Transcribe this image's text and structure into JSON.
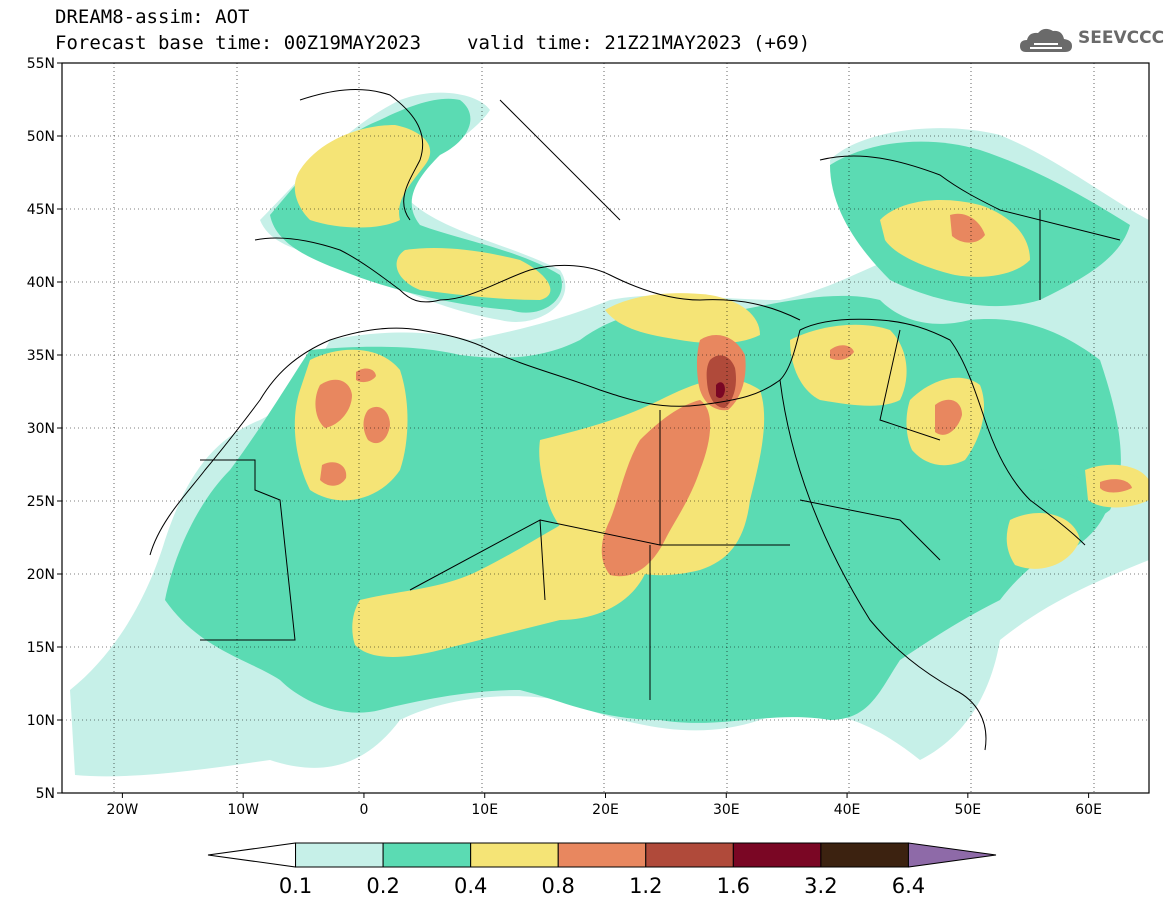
{
  "header": {
    "line1": "DREAM8-assim: AOT",
    "base_time": "Forecast base time: 00Z19MAY2023",
    "valid_time": "valid time: 21Z21MAY2023 (+69)",
    "logo_text": "SEEVCCC",
    "logo_icon": "cloud-icon"
  },
  "map": {
    "lon_range": [
      -25,
      65
    ],
    "lat_range": [
      5,
      55
    ],
    "lon_ticks": [
      {
        "value": -20,
        "label": "20W"
      },
      {
        "value": -10,
        "label": "10W"
      },
      {
        "value": 0,
        "label": "0"
      },
      {
        "value": 10,
        "label": "10E"
      },
      {
        "value": 20,
        "label": "20E"
      },
      {
        "value": 30,
        "label": "30E"
      },
      {
        "value": 40,
        "label": "40E"
      },
      {
        "value": 50,
        "label": "50E"
      },
      {
        "value": 60,
        "label": "60E"
      }
    ],
    "lat_ticks": [
      {
        "value": 55,
        "label": "55N"
      },
      {
        "value": 50,
        "label": "50N"
      },
      {
        "value": 45,
        "label": "45N"
      },
      {
        "value": 40,
        "label": "40N"
      },
      {
        "value": 35,
        "label": "35N"
      },
      {
        "value": 30,
        "label": "30N"
      },
      {
        "value": 25,
        "label": "25N"
      },
      {
        "value": 20,
        "label": "20N"
      },
      {
        "value": 15,
        "label": "15N"
      },
      {
        "value": 10,
        "label": "10N"
      },
      {
        "value": 5,
        "label": "5N"
      }
    ],
    "grid": "dotted"
  },
  "colorbar": {
    "levels": [
      "0.1",
      "0.2",
      "0.4",
      "0.8",
      "1.2",
      "1.6",
      "3.2",
      "6.4"
    ],
    "colors": [
      "#ffffff",
      "#c6f0e8",
      "#5bdbb3",
      "#f5e476",
      "#e8875f",
      "#b04a3a",
      "#7a0624",
      "#3c2210",
      "#8e6aa8"
    ]
  }
}
